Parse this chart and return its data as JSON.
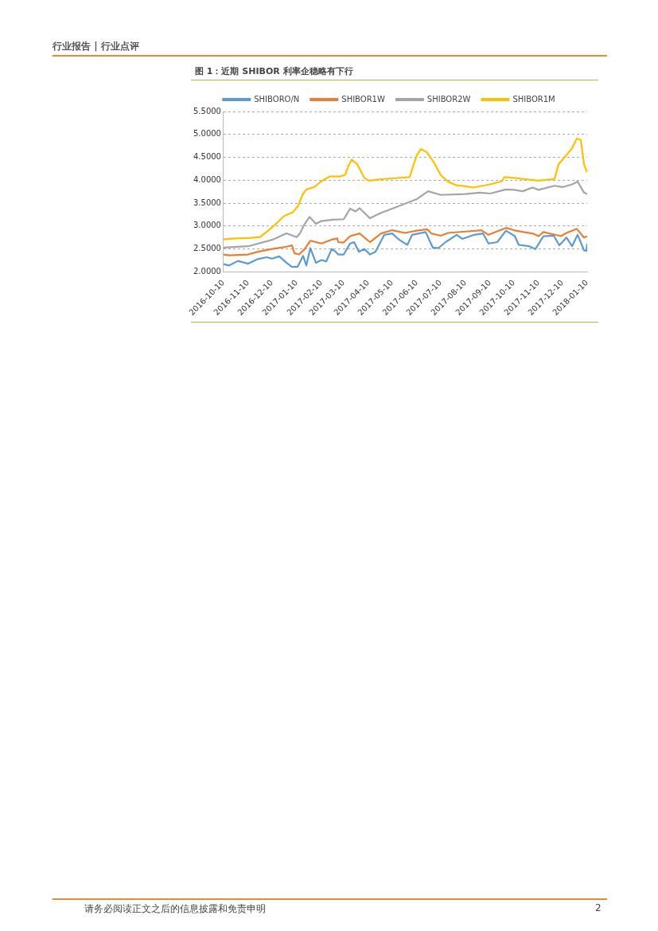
{
  "chart_data": {
    "type": "line",
    "title": "图 1：近期 SHIBOR 利率企稳略有下行",
    "annotations": [
      "行业报告 | 行业点评",
      "请务必阅读正文之后的信息披露和免责申明",
      "2"
    ],
    "series": [
      {
        "name": "SHIBORO/N",
        "color": "#5b9bd5",
        "x": [
          "2016-10-10",
          "2016-10-17",
          "2016-10-28",
          "2016-11-10",
          "2016-11-22",
          "2016-12-03",
          "2016-12-10",
          "2016-12-19",
          "2016-12-28",
          "2017-01-04",
          "2017-01-11",
          "2017-01-18",
          "2017-01-22",
          "2017-01-27",
          "2017-02-03",
          "2017-02-10",
          "2017-02-16",
          "2017-02-23",
          "2017-02-28",
          "2017-03-03",
          "2017-03-10",
          "2017-03-18",
          "2017-03-23",
          "2017-03-29",
          "2017-04-05",
          "2017-04-12",
          "2017-04-19",
          "2017-04-30",
          "2017-05-10",
          "2017-05-18",
          "2017-05-29",
          "2017-06-04",
          "2017-06-21",
          "2017-06-30",
          "2017-07-07",
          "2017-07-16",
          "2017-07-30",
          "2017-08-06",
          "2017-08-21",
          "2017-09-01",
          "2017-09-08",
          "2017-09-19",
          "2017-09-30",
          "2017-10-11",
          "2017-10-16",
          "2017-10-29",
          "2017-11-06",
          "2017-11-16",
          "2017-11-29",
          "2017-12-06",
          "2017-12-15",
          "2017-12-22",
          "2017-12-29",
          "2018-01-06",
          "2018-01-09",
          "2018-01-10"
        ],
        "values": [
          2.17,
          2.14,
          2.24,
          2.18,
          2.28,
          2.32,
          2.29,
          2.34,
          2.2,
          2.11,
          2.11,
          2.35,
          2.14,
          2.52,
          2.2,
          2.26,
          2.23,
          2.5,
          2.44,
          2.38,
          2.38,
          2.62,
          2.65,
          2.44,
          2.5,
          2.38,
          2.44,
          2.81,
          2.84,
          2.71,
          2.59,
          2.81,
          2.87,
          2.53,
          2.52,
          2.65,
          2.81,
          2.72,
          2.81,
          2.84,
          2.62,
          2.65,
          2.9,
          2.78,
          2.59,
          2.56,
          2.5,
          2.78,
          2.79,
          2.58,
          2.75,
          2.56,
          2.81,
          2.47,
          2.46,
          2.62
        ]
      },
      {
        "name": "SHIBOR1W",
        "color": "#ed7d31",
        "x": [
          "2016-10-10",
          "2016-10-17",
          "2016-11-10",
          "2016-11-22",
          "2016-12-10",
          "2016-12-28",
          "2017-01-04",
          "2017-01-07",
          "2017-01-13",
          "2017-01-20",
          "2017-01-27",
          "2017-02-10",
          "2017-02-24",
          "2017-03-02",
          "2017-03-03",
          "2017-03-10",
          "2017-03-18",
          "2017-03-30",
          "2017-04-12",
          "2017-04-26",
          "2017-05-10",
          "2017-05-26",
          "2017-06-10",
          "2017-06-23",
          "2017-06-28",
          "2017-07-10",
          "2017-07-19",
          "2017-08-10",
          "2017-08-30",
          "2017-09-08",
          "2017-09-30",
          "2017-10-10",
          "2017-10-22",
          "2017-11-02",
          "2017-11-10",
          "2017-11-16",
          "2017-12-08",
          "2017-12-15",
          "2017-12-28",
          "2018-01-06",
          "2018-01-10"
        ],
        "values": [
          2.38,
          2.36,
          2.38,
          2.44,
          2.5,
          2.55,
          2.58,
          2.41,
          2.38,
          2.5,
          2.68,
          2.62,
          2.71,
          2.73,
          2.65,
          2.64,
          2.78,
          2.84,
          2.65,
          2.84,
          2.91,
          2.85,
          2.9,
          2.93,
          2.84,
          2.79,
          2.85,
          2.88,
          2.91,
          2.81,
          2.96,
          2.91,
          2.87,
          2.84,
          2.78,
          2.87,
          2.78,
          2.85,
          2.94,
          2.75,
          2.78
        ]
      },
      {
        "name": "SHIBOR2W",
        "color": "#a5a5a5",
        "x": [
          "2016-10-10",
          "2016-11-10",
          "2016-12-10",
          "2016-12-28",
          "2017-01-10",
          "2017-01-14",
          "2017-01-19",
          "2017-01-26",
          "2017-02-03",
          "2017-02-10",
          "2017-02-24",
          "2017-03-10",
          "2017-03-18",
          "2017-03-25",
          "2017-03-30",
          "2017-04-12",
          "2017-04-26",
          "2017-05-10",
          "2017-06-10",
          "2017-06-24",
          "2017-07-10",
          "2017-08-10",
          "2017-08-28",
          "2017-09-10",
          "2017-09-30",
          "2017-10-10",
          "2017-10-21",
          "2017-11-02",
          "2017-11-10",
          "2017-11-30",
          "2017-12-10",
          "2017-12-22",
          "2017-12-29",
          "2018-01-06",
          "2018-01-10"
        ],
        "values": [
          2.53,
          2.56,
          2.7,
          2.84,
          2.76,
          2.84,
          3.02,
          3.2,
          3.05,
          3.11,
          3.14,
          3.15,
          3.38,
          3.32,
          3.39,
          3.17,
          3.29,
          3.38,
          3.59,
          3.76,
          3.68,
          3.7,
          3.73,
          3.71,
          3.8,
          3.79,
          3.76,
          3.84,
          3.79,
          3.88,
          3.85,
          3.91,
          3.97,
          3.73,
          3.7
        ]
      },
      {
        "name": "SHIBOR1M",
        "color": "#ffc000",
        "x": [
          "2016-10-10",
          "2016-10-25",
          "2016-11-10",
          "2016-11-25",
          "2016-12-05",
          "2016-12-15",
          "2016-12-25",
          "2017-01-05",
          "2017-01-12",
          "2017-01-17",
          "2017-01-22",
          "2017-02-01",
          "2017-02-10",
          "2017-02-20",
          "2017-03-05",
          "2017-03-12",
          "2017-03-16",
          "2017-03-20",
          "2017-03-27",
          "2017-04-05",
          "2017-04-10",
          "2017-04-25",
          "2017-05-10",
          "2017-06-01",
          "2017-06-05",
          "2017-06-10",
          "2017-06-15",
          "2017-06-22",
          "2017-07-01",
          "2017-07-10",
          "2017-07-20",
          "2017-07-30",
          "2017-08-10",
          "2017-08-20",
          "2017-09-10",
          "2017-09-25",
          "2017-09-28",
          "2017-10-10",
          "2017-10-25",
          "2017-11-10",
          "2017-11-30",
          "2017-12-05",
          "2017-12-15",
          "2017-12-22",
          "2017-12-28",
          "2018-01-02",
          "2018-01-06",
          "2018-01-10"
        ],
        "values": [
          2.71,
          2.73,
          2.74,
          2.76,
          2.9,
          3.05,
          3.22,
          3.3,
          3.45,
          3.68,
          3.8,
          3.85,
          3.98,
          4.08,
          4.08,
          4.12,
          4.32,
          4.45,
          4.35,
          4.05,
          3.99,
          4.02,
          4.04,
          4.07,
          4.3,
          4.55,
          4.68,
          4.62,
          4.4,
          4.11,
          3.96,
          3.89,
          3.87,
          3.84,
          3.91,
          3.98,
          4.07,
          4.05,
          4.02,
          3.99,
          4.03,
          4.35,
          4.55,
          4.7,
          4.91,
          4.88,
          4.35,
          4.17
        ]
      }
    ],
    "xlim": [
      "2016-10-10",
      "2018-01-10"
    ],
    "xticks": [
      "2016-10-10",
      "2016-11-10",
      "2016-12-10",
      "2017-01-10",
      "2017-02-10",
      "2017-03-10",
      "2017-04-10",
      "2017-05-10",
      "2017-06-10",
      "2017-07-10",
      "2017-08-10",
      "2017-09-10",
      "2017-10-10",
      "2017-11-10",
      "2017-12-10",
      "2018-01-10"
    ],
    "ylim": [
      2,
      5.5
    ],
    "yticks": [
      {
        "value": 2,
        "label": "2.0000"
      },
      {
        "value": 2.5,
        "label": "2.5000"
      },
      {
        "value": 3,
        "label": "3.0000"
      },
      {
        "value": 3.5,
        "label": "3.5000"
      },
      {
        "value": 4,
        "label": "4.0000"
      },
      {
        "value": 4.5,
        "label": "4.5000"
      },
      {
        "value": 5,
        "label": "5.0000"
      },
      {
        "value": 5.5,
        "label": "5.5000"
      }
    ],
    "grid": "y",
    "legend": "top",
    "marker": "none",
    "line_style": "solid"
  }
}
